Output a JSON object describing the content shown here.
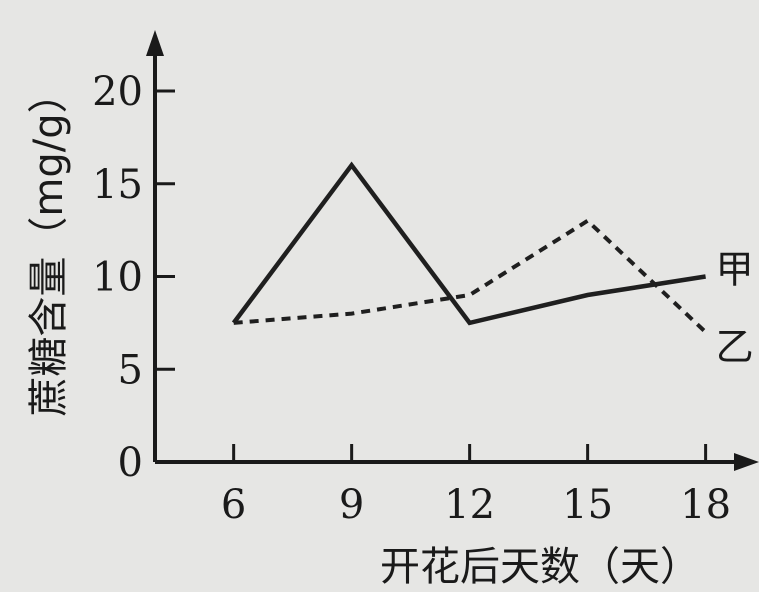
{
  "chart_data": {
    "type": "line",
    "xlabel": "开花后天数（天）",
    "ylabel": "蔗糖含量（mg/g）",
    "x": [
      6,
      9,
      12,
      15,
      18
    ],
    "xlim": [
      4,
      19
    ],
    "ylim": [
      0,
      20
    ],
    "x_ticks": [
      "6",
      "9",
      "12",
      "15",
      "18"
    ],
    "y_ticks": [
      "0",
      "5",
      "10",
      "15",
      "20"
    ],
    "grid": false,
    "series": [
      {
        "name": "甲",
        "style": "solid",
        "color": "#1f1f1f",
        "values": [
          7.5,
          16,
          7.5,
          9,
          10
        ]
      },
      {
        "name": "乙",
        "style": "dashed",
        "color": "#1f1f1f",
        "values": [
          7.5,
          8,
          9,
          13,
          7
        ]
      }
    ]
  }
}
